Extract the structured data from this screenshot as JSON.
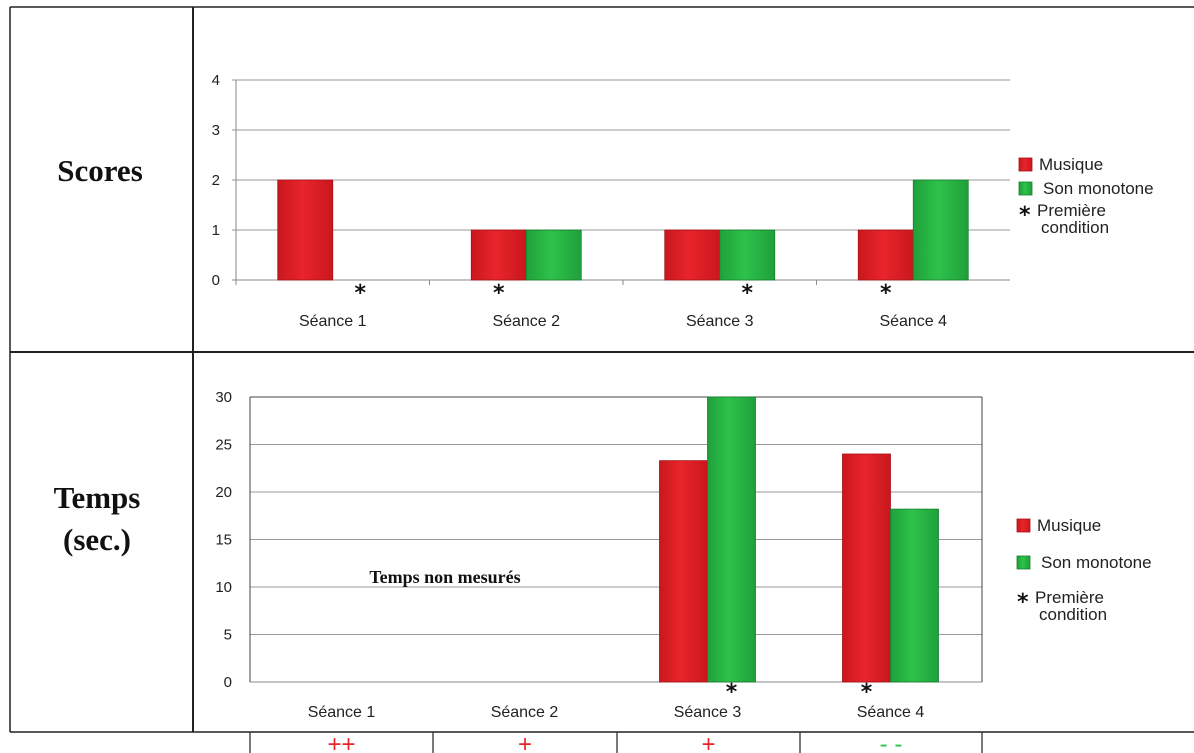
{
  "row_labels": {
    "scores": "Scores",
    "temps_line1": "Temps",
    "temps_line2": "(sec.)"
  },
  "colors": {
    "musique": "#e8252b",
    "son_monotone": "#2ec24a",
    "rating_positive": "#e8252b",
    "rating_negative": "#2ec24a"
  },
  "chart_data": [
    {
      "type": "bar",
      "title": "",
      "categories": [
        "Séance 1",
        "Séance 2",
        "Séance 3",
        "Séance 4"
      ],
      "series": [
        {
          "name": "Musique",
          "values": [
            2,
            1,
            1,
            1
          ],
          "color": "#e8252b"
        },
        {
          "name": "Son monotone",
          "values": [
            0,
            1,
            1,
            2
          ],
          "color": "#2ec24a"
        }
      ],
      "ylim": [
        0,
        4
      ],
      "yticks": [
        0,
        1,
        2,
        3,
        4
      ],
      "grid": true,
      "legend": [
        "Musique",
        "Son monotone"
      ],
      "legend_note": {
        "symbol": "*",
        "line1": "Première",
        "line2": "condition"
      },
      "first_condition": [
        "Son monotone",
        "Musique",
        "Son monotone",
        "Musique"
      ]
    },
    {
      "type": "bar",
      "title": "",
      "categories": [
        "Séance 1",
        "Séance 2",
        "Séance 3",
        "Séance 4"
      ],
      "series": [
        {
          "name": "Musique",
          "values": [
            null,
            null,
            23.3,
            24
          ],
          "color": "#e8252b"
        },
        {
          "name": "Son monotone",
          "values": [
            null,
            null,
            30,
            18.2
          ],
          "color": "#2ec24a"
        }
      ],
      "ylim": [
        0,
        30
      ],
      "yticks": [
        0,
        5,
        10,
        15,
        20,
        25,
        30
      ],
      "grid": true,
      "legend": [
        "Musique",
        "Son monotone"
      ],
      "legend_note": {
        "symbol": "*",
        "line1": "Première",
        "line2": "condition"
      },
      "annotation": "Temps non mesurés",
      "first_condition": [
        null,
        null,
        "Son monotone",
        "Musique"
      ]
    }
  ],
  "ratings": [
    "++",
    "+",
    "+",
    "- -"
  ]
}
